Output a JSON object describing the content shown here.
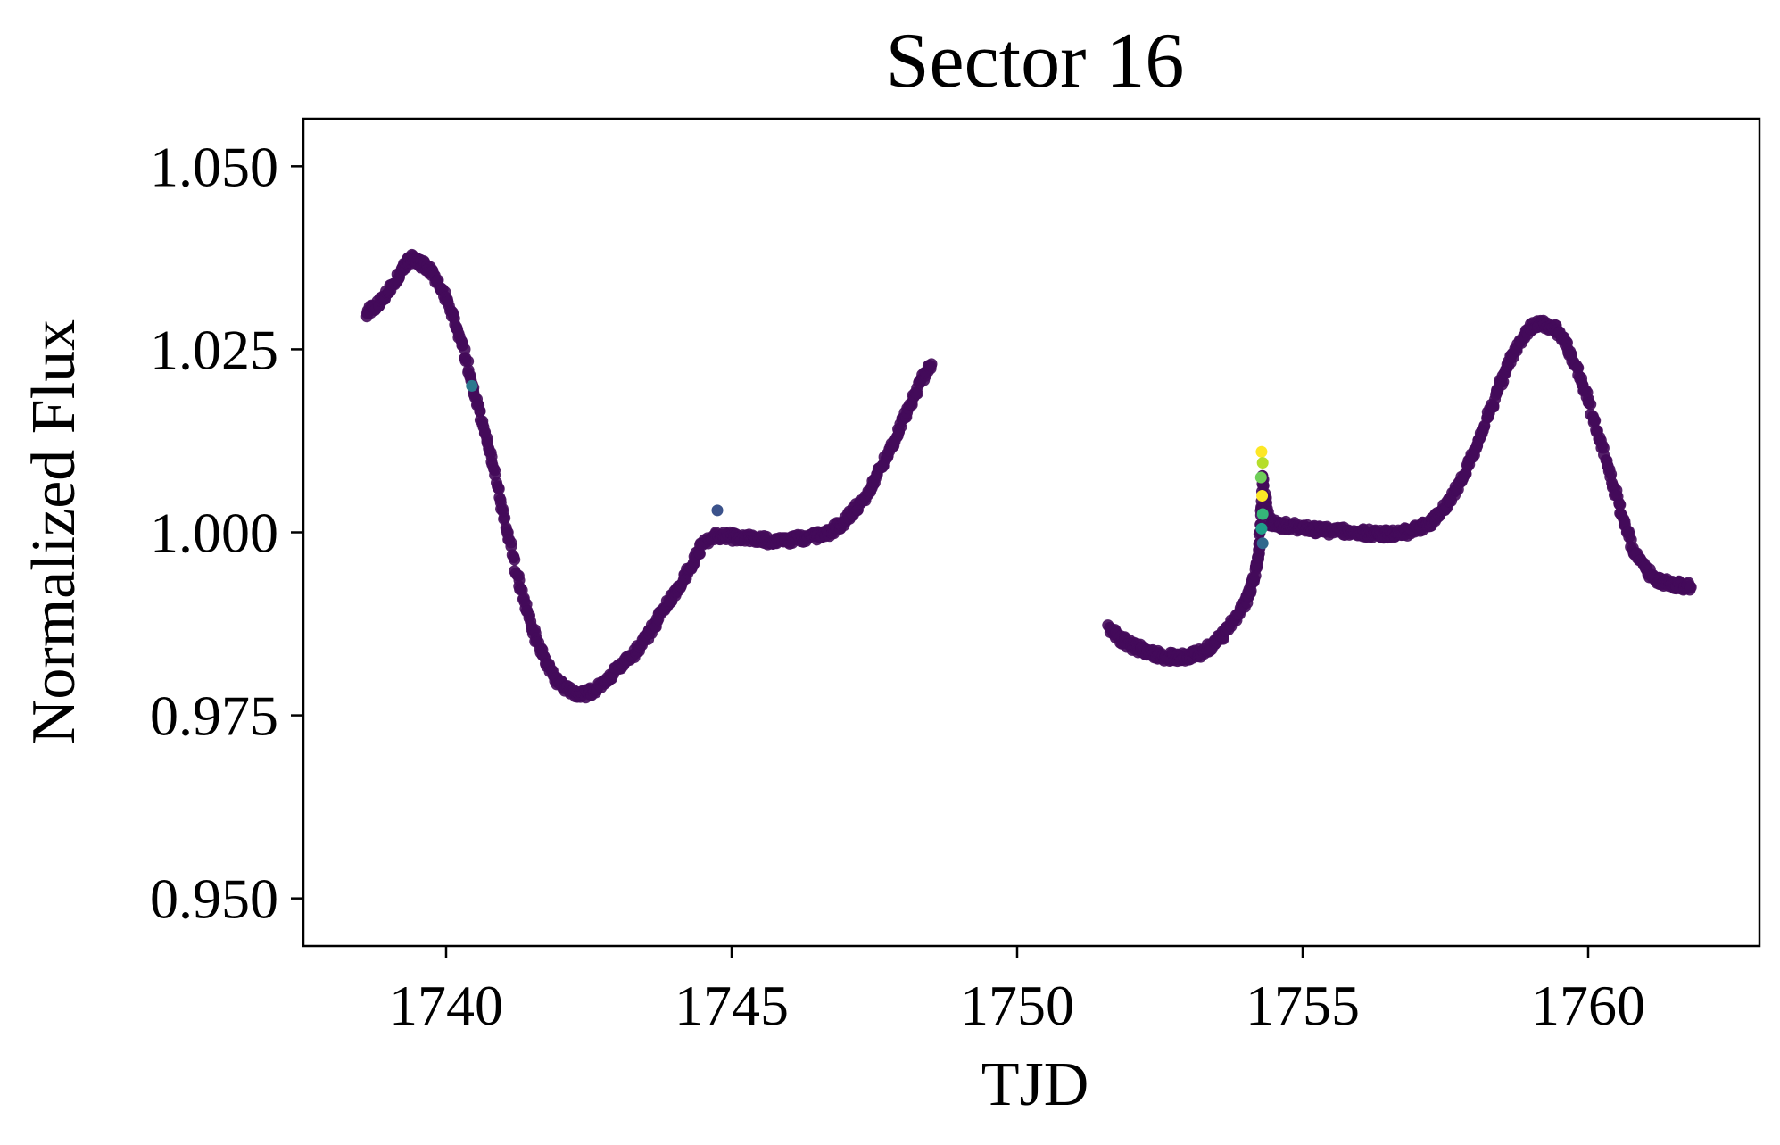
{
  "chart_data": {
    "type": "scatter",
    "title": "Sector 16",
    "xlabel": "TJD",
    "ylabel": "Normalized Flux",
    "xlim": [
      1737.5,
      1763.0
    ],
    "ylim": [
      0.9435,
      1.0565
    ],
    "xticks": [
      1740,
      1745,
      1750,
      1755,
      1760
    ],
    "xtick_labels": [
      "1740",
      "1745",
      "1750",
      "1755",
      "1760"
    ],
    "yticks": [
      0.95,
      0.975,
      1.0,
      1.025,
      1.05
    ],
    "ytick_labels": [
      "0.950",
      "0.975",
      "1.000",
      "1.025",
      "1.050"
    ],
    "grid": false,
    "legend": "none",
    "colormap": "viridis",
    "point_color": "#440a5a",
    "series": [
      {
        "x": [
          1738.6,
          1738.8,
          1739.0,
          1739.2,
          1739.35,
          1739.5,
          1739.7,
          1739.9,
          1740.1,
          1740.3,
          1740.5,
          1740.7,
          1740.9,
          1741.1,
          1741.3,
          1741.5,
          1741.7,
          1741.9,
          1742.1,
          1742.3,
          1742.5,
          1742.7,
          1742.9,
          1743.1,
          1743.3,
          1743.5,
          1743.7,
          1743.9,
          1744.1,
          1744.3,
          1744.5,
          1744.7,
          1744.9,
          1745.1,
          1745.3,
          1745.5,
          1745.7,
          1745.9,
          1746.1,
          1746.3,
          1746.5,
          1746.7,
          1746.9,
          1747.1,
          1747.3,
          1747.5,
          1747.7,
          1747.9,
          1748.1,
          1748.3,
          1748.5
        ],
        "y": [
          1.03,
          1.031,
          1.033,
          1.0355,
          1.0375,
          1.037,
          1.036,
          1.0335,
          1.03,
          1.025,
          1.019,
          1.013,
          1.006,
          0.999,
          0.9925,
          0.987,
          0.983,
          0.98,
          0.9785,
          0.978,
          0.978,
          0.979,
          0.9805,
          0.982,
          0.9835,
          0.9855,
          0.988,
          0.9905,
          0.993,
          0.9955,
          0.9985,
          0.9995,
          0.9995,
          0.9993,
          0.9992,
          0.999,
          0.9988,
          0.9988,
          0.999,
          0.9992,
          0.9995,
          1.0,
          1.001,
          1.0025,
          1.0045,
          1.007,
          1.01,
          1.0135,
          1.017,
          1.0205,
          1.023
        ]
      },
      {
        "x": [
          1751.6,
          1751.8,
          1752.0,
          1752.2,
          1752.4,
          1752.6,
          1752.8,
          1753.0,
          1753.2,
          1753.4,
          1753.6,
          1753.8,
          1754.0,
          1754.1,
          1754.2,
          1754.25,
          1754.3,
          1754.4,
          1754.6,
          1754.8,
          1755.0,
          1755.2,
          1755.4,
          1755.6,
          1755.8,
          1756.0,
          1756.2,
          1756.4,
          1756.6,
          1756.8,
          1757.0,
          1757.2,
          1757.4,
          1757.6,
          1757.8,
          1758.0,
          1758.2,
          1758.4,
          1758.6,
          1758.8,
          1759.0,
          1759.2,
          1759.4,
          1759.6,
          1759.8,
          1760.0,
          1760.2,
          1760.4,
          1760.6,
          1760.8,
          1761.0,
          1761.2,
          1761.4,
          1761.6,
          1761.8
        ],
        "y": [
          0.987,
          0.9855,
          0.9845,
          0.984,
          0.9835,
          0.983,
          0.983,
          0.983,
          0.9835,
          0.9845,
          0.986,
          0.988,
          0.9905,
          0.9925,
          0.9955,
          0.9985,
          1.008,
          1.0015,
          1.001,
          1.0008,
          1.0006,
          1.0004,
          1.0003,
          1.0002,
          1.0001,
          1.0,
          0.9998,
          0.9997,
          0.9998,
          1.0,
          1.0005,
          1.0012,
          1.0025,
          1.0045,
          1.0075,
          1.011,
          1.015,
          1.019,
          1.023,
          1.026,
          1.028,
          1.0285,
          1.028,
          1.026,
          1.0225,
          1.018,
          1.013,
          1.0075,
          1.002,
          0.9975,
          0.995,
          0.9935,
          0.993,
          0.9928,
          0.9925
        ]
      }
    ],
    "outliers": [
      {
        "x": 1740.45,
        "y": 1.02,
        "color": "#2a788e"
      },
      {
        "x": 1744.75,
        "y": 1.003,
        "color": "#3b528b"
      },
      {
        "x": 1754.28,
        "y": 1.011,
        "color": "#fde725"
      },
      {
        "x": 1754.3,
        "y": 1.0095,
        "color": "#b5de2b"
      },
      {
        "x": 1754.27,
        "y": 1.0075,
        "color": "#6ece58"
      },
      {
        "x": 1754.29,
        "y": 1.005,
        "color": "#fde725"
      },
      {
        "x": 1754.3,
        "y": 1.0025,
        "color": "#35b779"
      },
      {
        "x": 1754.28,
        "y": 1.0005,
        "color": "#1f9e89"
      },
      {
        "x": 1754.3,
        "y": 0.9985,
        "color": "#31688e"
      }
    ]
  }
}
